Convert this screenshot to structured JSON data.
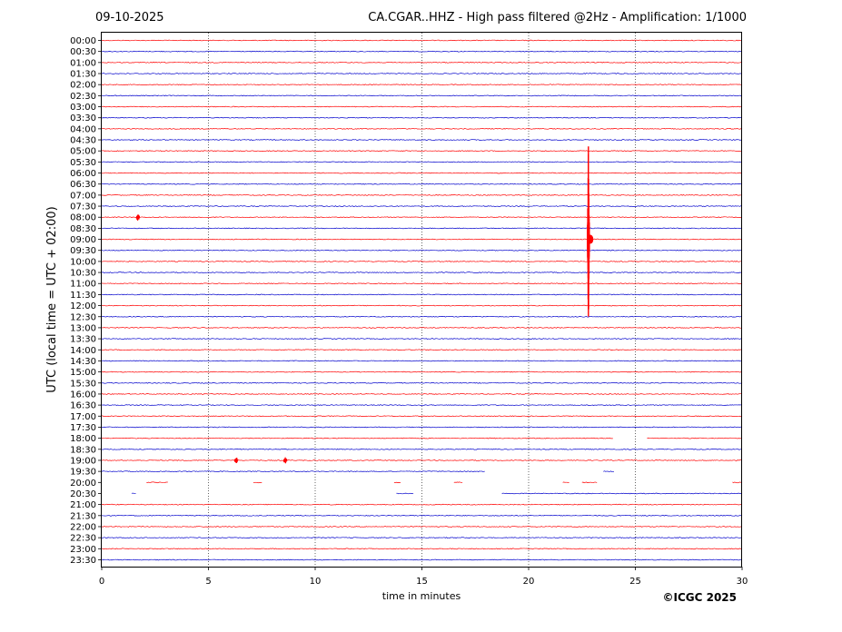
{
  "header": {
    "date": "09-10-2025",
    "title": "CA.CGAR..HHZ - High pass filtered @2Hz - Amplification: 1/1000"
  },
  "footer": {
    "copyright": "©ICGC 2025"
  },
  "chart_data": {
    "type": "line",
    "title": "CA.CGAR..HHZ - High pass filtered @2Hz - Amplification: 1/1000",
    "xlabel": "time in minutes",
    "ylabel": "UTC (local time = UTC + 02:00)",
    "xlim": [
      0,
      30
    ],
    "x_ticks": [
      0,
      5,
      10,
      15,
      20,
      25,
      30
    ],
    "x_gridlines": [
      5,
      10,
      15,
      20,
      25
    ],
    "grid": "vertical dotted lines",
    "rows": [
      "00:00",
      "00:30",
      "01:00",
      "01:30",
      "02:00",
      "02:30",
      "03:00",
      "03:30",
      "04:00",
      "04:30",
      "05:00",
      "05:30",
      "06:00",
      "06:30",
      "07:00",
      "07:30",
      "08:00",
      "08:30",
      "09:00",
      "09:30",
      "10:00",
      "10:30",
      "11:00",
      "11:30",
      "12:00",
      "12:30",
      "13:00",
      "13:30",
      "14:00",
      "14:30",
      "15:00",
      "15:30",
      "16:00",
      "16:30",
      "17:00",
      "17:30",
      "18:00",
      "18:30",
      "19:00",
      "19:30",
      "20:00",
      "20:30",
      "21:00",
      "21:30",
      "22:00",
      "22:30",
      "23:00",
      "23:30"
    ],
    "trace_colors": [
      "#ff0000",
      "#0000cc"
    ],
    "events": [
      {
        "row": "08:00",
        "minute": 1.7,
        "amplitude": 0.35
      },
      {
        "row": "09:00",
        "minute": 22.8,
        "amplitude": 10.0,
        "main_event": true
      },
      {
        "row": "19:00",
        "minute": 6.3,
        "amplitude": 0.3
      },
      {
        "row": "19:00",
        "minute": 8.6,
        "amplitude": 0.3
      }
    ],
    "data_gaps": [
      {
        "row": "18:00",
        "from_minute": 24.0,
        "to_minute": 25.5
      },
      {
        "row": "19:30",
        "from_minute": 18.0,
        "to_minute": 23.5
      },
      {
        "row": "19:30",
        "from_minute": 24.0,
        "to_minute": 30.0
      },
      {
        "row": "20:00",
        "from_minute": 0.0,
        "to_minute": 29.5
      },
      {
        "row": "20:30",
        "from_minute": 0.0,
        "to_minute": 18.7
      }
    ],
    "segments": [
      {
        "row": "20:00",
        "from_minute": 2.1,
        "to_minute": 3.1
      },
      {
        "row": "20:00",
        "from_minute": 7.1,
        "to_minute": 7.5
      },
      {
        "row": "20:00",
        "from_minute": 13.7,
        "to_minute": 14.0
      },
      {
        "row": "20:00",
        "from_minute": 16.5,
        "to_minute": 16.9
      },
      {
        "row": "20:00",
        "from_minute": 21.6,
        "to_minute": 21.9
      },
      {
        "row": "20:00",
        "from_minute": 22.5,
        "to_minute": 23.2
      },
      {
        "row": "20:30",
        "from_minute": 1.4,
        "to_minute": 1.6
      },
      {
        "row": "20:30",
        "from_minute": 13.8,
        "to_minute": 14.6
      },
      {
        "row": "19:30",
        "from_minute": 23.5,
        "to_minute": 24.0
      }
    ]
  }
}
